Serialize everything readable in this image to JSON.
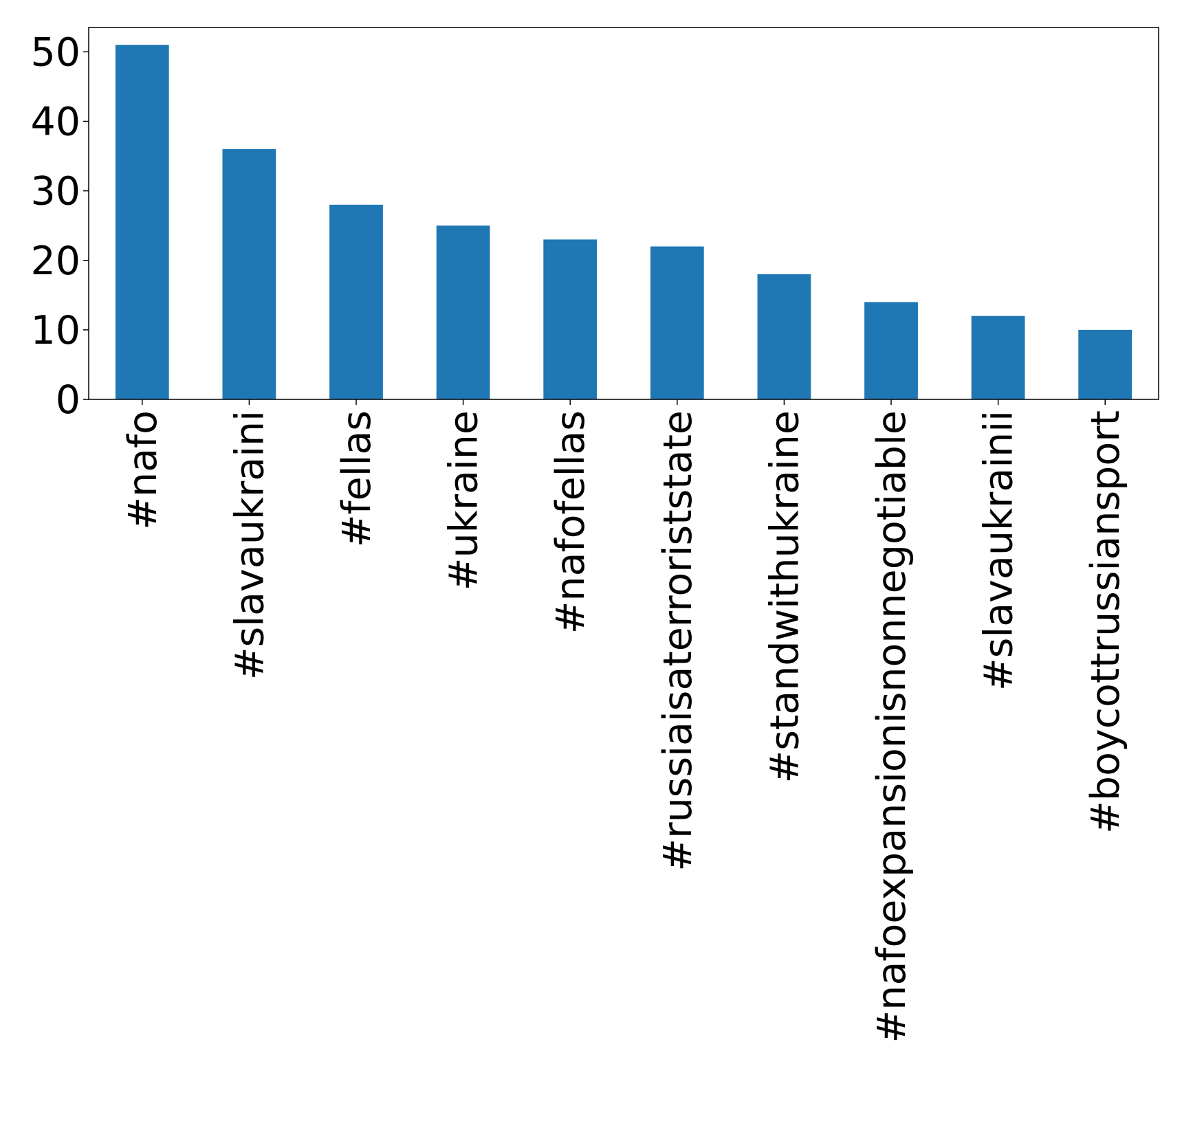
{
  "chart_data": {
    "type": "bar",
    "title": "",
    "xlabel": "",
    "ylabel": "",
    "categories": [
      "#nafo",
      "#slavaukraini",
      "#fellas",
      "#ukraine",
      "#nafofellas",
      "#russiaisaterroriststate",
      "#standwithukraine",
      "#nafoexpansionisnonnegotiable",
      "#slavaukrainii",
      "#boycottrussiansport"
    ],
    "values": [
      51,
      36,
      28,
      25,
      23,
      22,
      18,
      14,
      12,
      10
    ],
    "ylim": [
      0,
      53.5
    ],
    "yticks": [
      "0",
      "10",
      "20",
      "30",
      "40",
      "50"
    ],
    "grid": false,
    "legend": "none",
    "bar_color": "#1f77b4",
    "axis_color": "#000000"
  }
}
